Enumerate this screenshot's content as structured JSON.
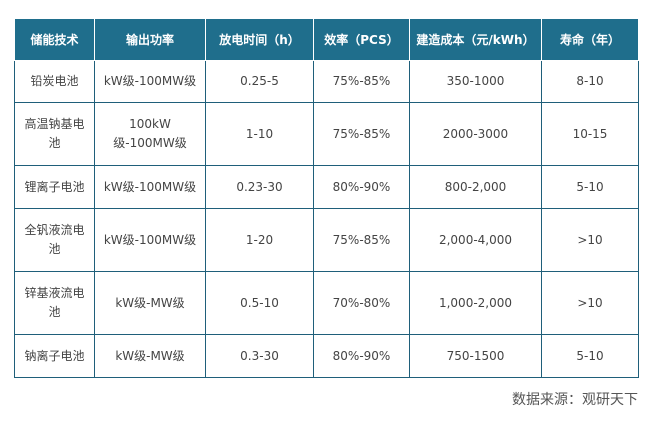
{
  "table": {
    "headers": [
      "储能技术",
      "输出功率",
      "放电时间（h）",
      "效率（PCS）",
      "建造成本（元/kWh）",
      "寿命（年）"
    ],
    "rows": [
      [
        "铅炭电池",
        "kW级-100MW级",
        "0.25-5",
        "75%-85%",
        "350-1000",
        "8-10"
      ],
      [
        "高温钠基电池",
        "100kW级-100MW级",
        "1-10",
        "75%-85%",
        "2000-3000",
        "10-15"
      ],
      [
        "锂离子电池",
        "kW级-100MW级",
        "0.23-30",
        "80%-90%",
        "800-2,000",
        "5-10"
      ],
      [
        "全钒液流电池",
        "kW级-100MW级",
        "1-20",
        "75%-85%",
        "2,000-4,000",
        ">10"
      ],
      [
        "锌基液流电池",
        "kW级-MW级",
        "0.5-10",
        "70%-80%",
        "1,000-2,000",
        ">10"
      ],
      [
        "钠离子电池",
        "kW级-MW级",
        "0.3-30",
        "80%-90%",
        "750-1500",
        "5-10"
      ]
    ]
  },
  "source": "数据来源：观研天下"
}
